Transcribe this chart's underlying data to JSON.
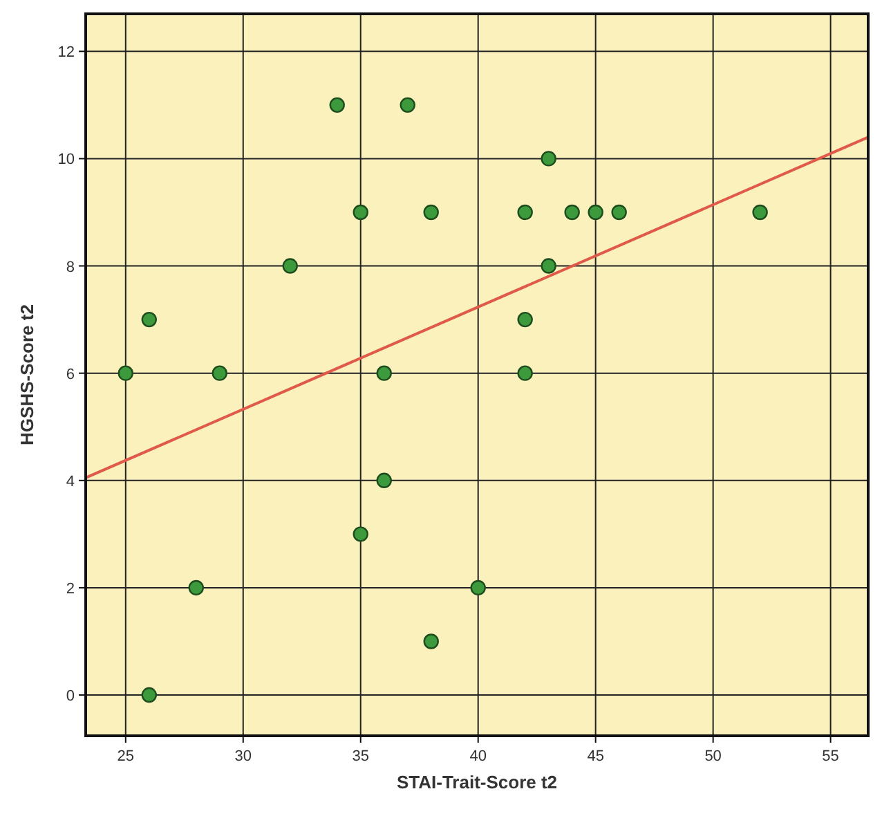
{
  "chart_data": {
    "type": "scatter",
    "xlabel": "STAI-Trait-Score t2",
    "ylabel": "HGSHS-Score t2",
    "xlim": [
      23.3,
      56.6
    ],
    "ylim": [
      -0.76,
      12.7
    ],
    "xticks": [
      25,
      30,
      35,
      40,
      45,
      50,
      55
    ],
    "yticks": [
      0,
      2,
      4,
      6,
      8,
      10,
      12
    ],
    "grid": true,
    "series": [
      {
        "color": "#3c9a3c",
        "marker": "circle",
        "x": [
          26,
          28,
          38,
          40,
          35,
          36,
          25,
          29,
          36,
          42,
          42,
          26,
          32,
          43,
          35,
          38,
          42,
          44,
          45,
          46,
          52,
          43,
          34,
          37
        ],
        "values": [
          0,
          2,
          1,
          2,
          3,
          4,
          6,
          6,
          6,
          6,
          7,
          7,
          8,
          8,
          9,
          9,
          9,
          9,
          9,
          9,
          9,
          10,
          11,
          11
        ]
      },
      {
        "type": "line",
        "color": "#e05a4a",
        "marker": "none",
        "x": [
          23.3,
          56.6
        ],
        "values": [
          4.05,
          10.4
        ]
      }
    ]
  }
}
